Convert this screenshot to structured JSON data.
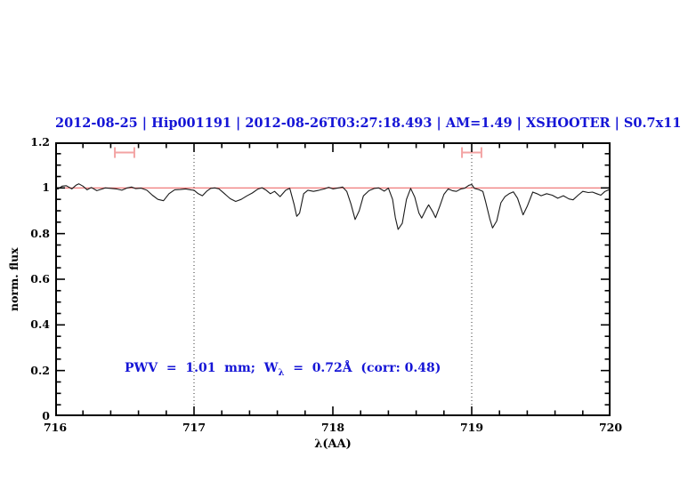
{
  "title": {
    "text": "2012-08-25 | Hip001191 | 2012-08-26T03:27:18.493 | AM=1.49 | XSHOOTER | S0.7x11",
    "segments": [
      "2012-08-25",
      "Hip001191",
      "2012-08-26T03:27:18.493",
      "AM=1.49",
      "XSHOOTER",
      "S0.7x11"
    ],
    "color": "#1515d6"
  },
  "annotation": {
    "pre": "PWV  =  1.01  mm;  W",
    "sub": "λ",
    "post": "  =  0.72Å  (corr: 0.48)",
    "color": "#1515d6"
  },
  "chart_data": {
    "type": "line",
    "title": "2012-08-25 | Hip001191 | 2012-08-26T03:27:18.493 | AM=1.49 | XSHOOTER | S0.7x11",
    "xlabel": "λ(AA)",
    "ylabel": "norm. flux",
    "xlim": [
      716,
      720
    ],
    "ylim": [
      0,
      1.2
    ],
    "xticks_major": [
      716,
      717,
      718,
      719,
      720
    ],
    "xtick_minor_step": 0.2,
    "yticks_major": [
      0,
      0.2,
      0.4,
      0.6,
      0.8,
      1,
      1.2
    ],
    "ytick_labels": [
      "0",
      "0.2",
      "0.4",
      "0.6",
      "0.8",
      "1",
      "1.2"
    ],
    "ytick_minor_step": 0.05,
    "grid": false,
    "vlines": {
      "x": [
        717,
        719
      ],
      "style": "dotted",
      "color": "#333333"
    },
    "reference_line": {
      "y": 1.0,
      "color": "#ee6a6a"
    },
    "range_markers": [
      {
        "x_min": 716.43,
        "x_max": 716.57,
        "y": 1.155
      },
      {
        "x_min": 718.93,
        "x_max": 719.07,
        "y": 1.155
      }
    ],
    "marker_color": "#f3a3a3",
    "frame_color": "#000000",
    "series": [
      {
        "name": "normalized spectrum",
        "color": "#1a1a1a",
        "points": [
          [
            716.0,
            1.0
          ],
          [
            716.02,
            0.995
          ],
          [
            716.05,
            1.008
          ],
          [
            716.08,
            1.01
          ],
          [
            716.12,
            0.996
          ],
          [
            716.15,
            1.012
          ],
          [
            716.17,
            1.018
          ],
          [
            716.2,
            1.008
          ],
          [
            716.23,
            0.992
          ],
          [
            716.26,
            1.002
          ],
          [
            716.3,
            0.988
          ],
          [
            716.33,
            0.994
          ],
          [
            716.36,
            1.0
          ],
          [
            716.4,
            0.998
          ],
          [
            716.44,
            0.996
          ],
          [
            716.48,
            0.99
          ],
          [
            716.52,
            1.0
          ],
          [
            716.55,
            1.004
          ],
          [
            716.58,
            0.997
          ],
          [
            716.62,
            0.999
          ],
          [
            716.66,
            0.99
          ],
          [
            716.7,
            0.968
          ],
          [
            716.74,
            0.95
          ],
          [
            716.78,
            0.944
          ],
          [
            716.82,
            0.975
          ],
          [
            716.86,
            0.992
          ],
          [
            716.9,
            0.993
          ],
          [
            716.94,
            0.996
          ],
          [
            716.98,
            0.991
          ],
          [
            717.0,
            0.99
          ],
          [
            717.03,
            0.975
          ],
          [
            717.06,
            0.966
          ],
          [
            717.09,
            0.985
          ],
          [
            717.12,
            0.998
          ],
          [
            717.15,
            1.0
          ],
          [
            717.18,
            0.996
          ],
          [
            717.22,
            0.975
          ],
          [
            717.26,
            0.953
          ],
          [
            717.3,
            0.941
          ],
          [
            717.34,
            0.95
          ],
          [
            717.38,
            0.965
          ],
          [
            717.42,
            0.978
          ],
          [
            717.46,
            0.995
          ],
          [
            717.49,
            1.001
          ],
          [
            717.52,
            0.99
          ],
          [
            717.55,
            0.975
          ],
          [
            717.58,
            0.985
          ],
          [
            717.62,
            0.962
          ],
          [
            717.66,
            0.99
          ],
          [
            717.69,
            0.998
          ],
          [
            717.72,
            0.93
          ],
          [
            717.74,
            0.876
          ],
          [
            717.76,
            0.89
          ],
          [
            717.79,
            0.975
          ],
          [
            717.82,
            0.99
          ],
          [
            717.86,
            0.985
          ],
          [
            717.9,
            0.99
          ],
          [
            717.94,
            0.996
          ],
          [
            717.97,
            1.003
          ],
          [
            718.0,
            0.996
          ],
          [
            718.04,
            1.0
          ],
          [
            718.07,
            1.004
          ],
          [
            718.1,
            0.985
          ],
          [
            718.13,
            0.93
          ],
          [
            718.16,
            0.862
          ],
          [
            718.19,
            0.9
          ],
          [
            718.22,
            0.965
          ],
          [
            718.26,
            0.988
          ],
          [
            718.3,
            0.998
          ],
          [
            718.33,
            1.0
          ],
          [
            718.37,
            0.986
          ],
          [
            718.4,
            0.999
          ],
          [
            718.43,
            0.95
          ],
          [
            718.45,
            0.87
          ],
          [
            718.47,
            0.818
          ],
          [
            718.5,
            0.845
          ],
          [
            718.53,
            0.95
          ],
          [
            718.56,
            0.998
          ],
          [
            718.59,
            0.96
          ],
          [
            718.62,
            0.89
          ],
          [
            718.64,
            0.868
          ],
          [
            718.67,
            0.905
          ],
          [
            718.69,
            0.926
          ],
          [
            718.72,
            0.895
          ],
          [
            718.74,
            0.87
          ],
          [
            718.77,
            0.92
          ],
          [
            718.8,
            0.972
          ],
          [
            718.83,
            0.996
          ],
          [
            718.86,
            0.988
          ],
          [
            718.89,
            0.985
          ],
          [
            718.92,
            0.995
          ],
          [
            718.95,
            0.999
          ],
          [
            718.98,
            1.012
          ],
          [
            719.0,
            1.015
          ],
          [
            719.02,
            0.998
          ],
          [
            719.05,
            0.993
          ],
          [
            719.08,
            0.985
          ],
          [
            719.1,
            0.94
          ],
          [
            719.13,
            0.865
          ],
          [
            719.15,
            0.825
          ],
          [
            719.18,
            0.855
          ],
          [
            719.21,
            0.935
          ],
          [
            719.24,
            0.962
          ],
          [
            719.27,
            0.975
          ],
          [
            719.3,
            0.983
          ],
          [
            719.33,
            0.955
          ],
          [
            719.37,
            0.882
          ],
          [
            719.4,
            0.92
          ],
          [
            719.44,
            0.982
          ],
          [
            719.47,
            0.975
          ],
          [
            719.5,
            0.966
          ],
          [
            719.54,
            0.975
          ],
          [
            719.58,
            0.968
          ],
          [
            719.62,
            0.955
          ],
          [
            719.66,
            0.966
          ],
          [
            719.7,
            0.952
          ],
          [
            719.73,
            0.948
          ],
          [
            719.77,
            0.97
          ],
          [
            719.8,
            0.985
          ],
          [
            719.84,
            0.98
          ],
          [
            719.87,
            0.982
          ],
          [
            719.9,
            0.975
          ],
          [
            719.93,
            0.968
          ],
          [
            719.96,
            0.985
          ],
          [
            720.0,
            0.995
          ]
        ]
      }
    ]
  }
}
